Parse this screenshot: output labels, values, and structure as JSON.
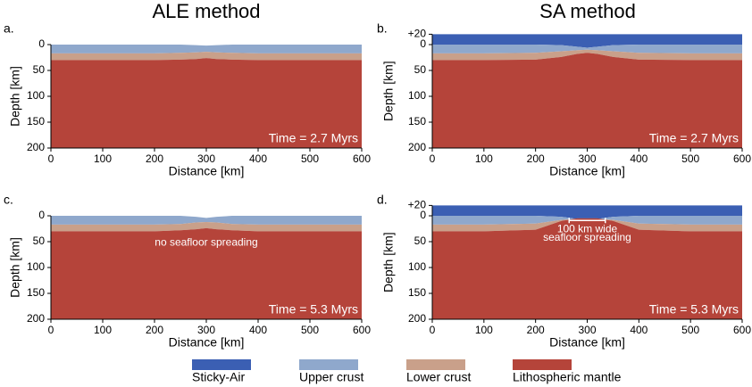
{
  "column_titles": [
    "ALE method",
    "SA method"
  ],
  "legend": [
    {
      "name": "Sticky-Air",
      "color": "#3b5fb3"
    },
    {
      "name": "Upper crust",
      "color": "#8fa8cc"
    },
    {
      "name": "Lower crust",
      "color": "#c9a08a"
    },
    {
      "name": "Lithospheric mantle",
      "color": "#b5443a"
    }
  ],
  "chart_data": [
    {
      "type": "layers",
      "panel_label": "a.",
      "xlabel": "Distance [km]",
      "ylabel": "Depth [km]",
      "time_label": "Time = 2.7 Myrs",
      "xlim": [
        0,
        600
      ],
      "xticks": [
        0,
        100,
        200,
        300,
        400,
        500,
        600
      ],
      "ylim": [
        0,
        200
      ],
      "yticks": [
        0,
        50,
        100,
        150,
        200
      ],
      "x": [
        0,
        100,
        200,
        250,
        280,
        300,
        320,
        350,
        400,
        500,
        600
      ],
      "series": [
        {
          "name": "Upper crust",
          "color": "#8fa8cc",
          "values": [
            0,
            0,
            0,
            0,
            1,
            2,
            1,
            0,
            0,
            0,
            0
          ]
        },
        {
          "name": "Lower crust",
          "color": "#c9a08a",
          "values": [
            17,
            17,
            17,
            16,
            15,
            14,
            15,
            16,
            17,
            17,
            17
          ]
        },
        {
          "name": "Lithospheric mantle",
          "color": "#b5443a",
          "values": [
            30,
            30,
            30,
            29,
            28,
            26,
            28,
            29,
            30,
            30,
            30
          ]
        }
      ]
    },
    {
      "type": "layers",
      "panel_label": "b.",
      "xlabel": "Distance [km]",
      "ylabel": "Depth [km]",
      "time_label": "Time = 2.7 Myrs",
      "xlim": [
        0,
        600
      ],
      "xticks": [
        0,
        100,
        200,
        300,
        400,
        500,
        600
      ],
      "ylim": [
        -20,
        200
      ],
      "yticks": [
        {
          "value": -20,
          "label": "+20"
        },
        0,
        50,
        100,
        150,
        200
      ],
      "x": [
        0,
        100,
        200,
        250,
        280,
        300,
        320,
        350,
        400,
        500,
        600
      ],
      "series": [
        {
          "name": "Sticky-Air",
          "color": "#3b5fb3",
          "values": [
            -20,
            -20,
            -20,
            -20,
            -20,
            -20,
            -20,
            -20,
            -20,
            -20,
            -20
          ]
        },
        {
          "name": "Upper crust",
          "color": "#8fa8cc",
          "values": [
            0,
            0,
            0,
            1,
            4,
            6,
            4,
            1,
            0,
            0,
            0
          ]
        },
        {
          "name": "Lower crust",
          "color": "#c9a08a",
          "values": [
            17,
            17,
            16,
            13,
            11,
            10,
            11,
            13,
            16,
            17,
            17
          ]
        },
        {
          "name": "Lithospheric mantle",
          "color": "#b5443a",
          "values": [
            30,
            30,
            29,
            24,
            18,
            16,
            18,
            24,
            29,
            30,
            30
          ]
        }
      ]
    },
    {
      "type": "layers",
      "panel_label": "c.",
      "xlabel": "Distance [km]",
      "ylabel": "Depth [km]",
      "time_label": "Time = 5.3 Myrs",
      "annotation": "no seafloor spreading",
      "xlim": [
        0,
        600
      ],
      "xticks": [
        0,
        100,
        200,
        300,
        400,
        500,
        600
      ],
      "ylim": [
        0,
        200
      ],
      "yticks": [
        0,
        50,
        100,
        150,
        200
      ],
      "x": [
        0,
        100,
        200,
        250,
        280,
        300,
        320,
        350,
        400,
        500,
        600
      ],
      "series": [
        {
          "name": "Upper crust",
          "color": "#8fa8cc",
          "values": [
            0,
            0,
            0,
            0,
            2,
            4,
            2,
            0,
            0,
            0,
            0
          ]
        },
        {
          "name": "Lower crust",
          "color": "#c9a08a",
          "values": [
            17,
            17,
            17,
            16,
            13,
            12,
            13,
            16,
            17,
            17,
            17
          ]
        },
        {
          "name": "Lithospheric mantle",
          "color": "#b5443a",
          "values": [
            30,
            30,
            30,
            28,
            26,
            24,
            26,
            28,
            30,
            30,
            30
          ]
        }
      ]
    },
    {
      "type": "layers",
      "panel_label": "d.",
      "xlabel": "Distance [km]",
      "ylabel": "Depth [km]",
      "time_label": "Time = 5.3 Myrs",
      "annotation": [
        "100 km wide",
        "seafloor spreading"
      ],
      "xlim": [
        0,
        600
      ],
      "xticks": [
        0,
        100,
        200,
        300,
        400,
        500,
        600
      ],
      "ylim": [
        -20,
        200
      ],
      "yticks": [
        {
          "value": -20,
          "label": "+20"
        },
        0,
        50,
        100,
        150,
        200
      ],
      "x": [
        0,
        100,
        200,
        250,
        280,
        300,
        320,
        350,
        400,
        500,
        600
      ],
      "series": [
        {
          "name": "Sticky-Air",
          "color": "#3b5fb3",
          "values": [
            -20,
            -20,
            -20,
            -20,
            -20,
            -20,
            -20,
            -20,
            -20,
            -20,
            -20
          ]
        },
        {
          "name": "Upper crust",
          "color": "#8fa8cc",
          "values": [
            0,
            0,
            0,
            2,
            6,
            8,
            6,
            2,
            0,
            0,
            0
          ]
        },
        {
          "name": "Lower crust",
          "color": "#c9a08a",
          "values": [
            17,
            17,
            15,
            8,
            6,
            6,
            6,
            8,
            15,
            17,
            17
          ]
        },
        {
          "name": "Lithospheric mantle",
          "color": "#b5443a",
          "values": [
            30,
            30,
            27,
            10,
            5,
            5,
            5,
            10,
            27,
            30,
            30
          ]
        }
      ]
    }
  ]
}
